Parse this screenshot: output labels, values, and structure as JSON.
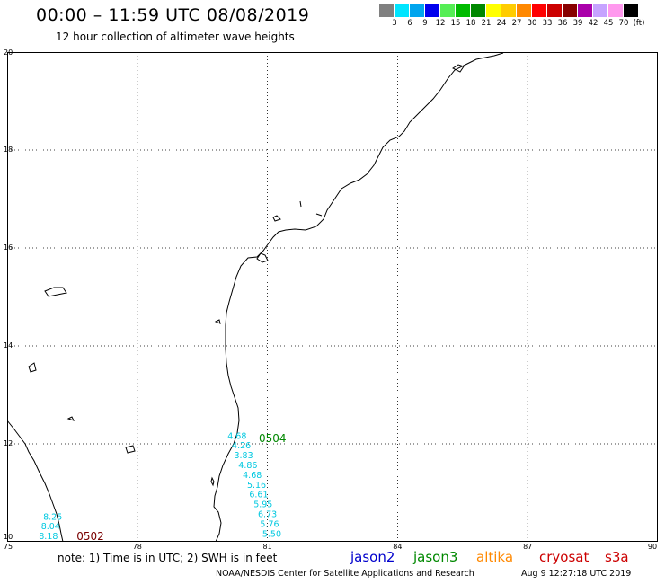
{
  "header": {
    "title": "00:00 – 11:59 UTC 08/08/2019",
    "subtitle": "12 hour collection of altimeter wave heights"
  },
  "legend": {
    "colors": [
      "#808080",
      "#00e5ff",
      "#00a5ee",
      "#0000ee",
      "#55ee55",
      "#00bb00",
      "#008800",
      "#ffff00",
      "#ffcc00",
      "#ff8800",
      "#ff0000",
      "#cc0000",
      "#880000",
      "#aa00aa",
      "#c6a3ff",
      "#ff99ee",
      "#000000"
    ],
    "labels": [
      "3",
      "6",
      "9",
      "12",
      "15",
      "18",
      "21",
      "24",
      "27",
      "30",
      "33",
      "36",
      "39",
      "42",
      "45",
      "70",
      "(ft)"
    ]
  },
  "map": {
    "lon_range": [
      75,
      90
    ],
    "lat_range": [
      10,
      20
    ],
    "x_ticks": [
      "75",
      "78",
      "81",
      "84",
      "87",
      "90"
    ],
    "y_ticks": [
      "20",
      "18",
      "16",
      "14",
      "12",
      "10"
    ],
    "grid": "dotted",
    "coastline_color": "#000000"
  },
  "passes": [
    {
      "id": "0504",
      "satellite": "jason3",
      "label_color": "#008800",
      "value_color": "#00c8e0",
      "label_lon": 80.8,
      "label_lat": 12.1,
      "points": [
        {
          "lon": 80.3,
          "lat": 12.15,
          "swh": "4.68"
        },
        {
          "lon": 80.4,
          "lat": 11.95,
          "swh": "4.26"
        },
        {
          "lon": 80.45,
          "lat": 11.75,
          "swh": "3.83"
        },
        {
          "lon": 80.55,
          "lat": 11.55,
          "swh": "4.86"
        },
        {
          "lon": 80.65,
          "lat": 11.35,
          "swh": "4.68"
        },
        {
          "lon": 80.75,
          "lat": 11.15,
          "swh": "5.16"
        },
        {
          "lon": 80.8,
          "lat": 10.95,
          "swh": "6.61"
        },
        {
          "lon": 80.9,
          "lat": 10.75,
          "swh": "5.95"
        },
        {
          "lon": 81.0,
          "lat": 10.55,
          "swh": "6.73"
        },
        {
          "lon": 81.05,
          "lat": 10.35,
          "swh": "5.76"
        },
        {
          "lon": 81.1,
          "lat": 10.15,
          "swh": "5.50"
        }
      ]
    },
    {
      "id": "0502",
      "satellite": "cryosat",
      "label_color": "#7a0000",
      "value_color": "#00c8e0",
      "label_lon": 76.6,
      "label_lat": 10.1,
      "points": [
        {
          "lon": 76.05,
          "lat": 10.5,
          "swh": "8.25"
        },
        {
          "lon": 76.0,
          "lat": 10.3,
          "swh": "8.04"
        },
        {
          "lon": 75.95,
          "lat": 10.1,
          "swh": "8.18"
        }
      ]
    }
  ],
  "footer": {
    "note": "note: 1) Time is in UTC; 2) SWH is in feet",
    "satellites": [
      {
        "name": "jason2",
        "color": "#0000cc"
      },
      {
        "name": "jason3",
        "color": "#008800"
      },
      {
        "name": "altika",
        "color": "#ff8800"
      },
      {
        "name": "cryosat",
        "color": "#cc0000"
      },
      {
        "name": "s3a",
        "color": "#cc0000"
      }
    ],
    "credit": "NOAA/NESDIS Center for Satellite Applications and Research",
    "timestamp": "Aug  9 12:27:18 UTC 2019"
  }
}
